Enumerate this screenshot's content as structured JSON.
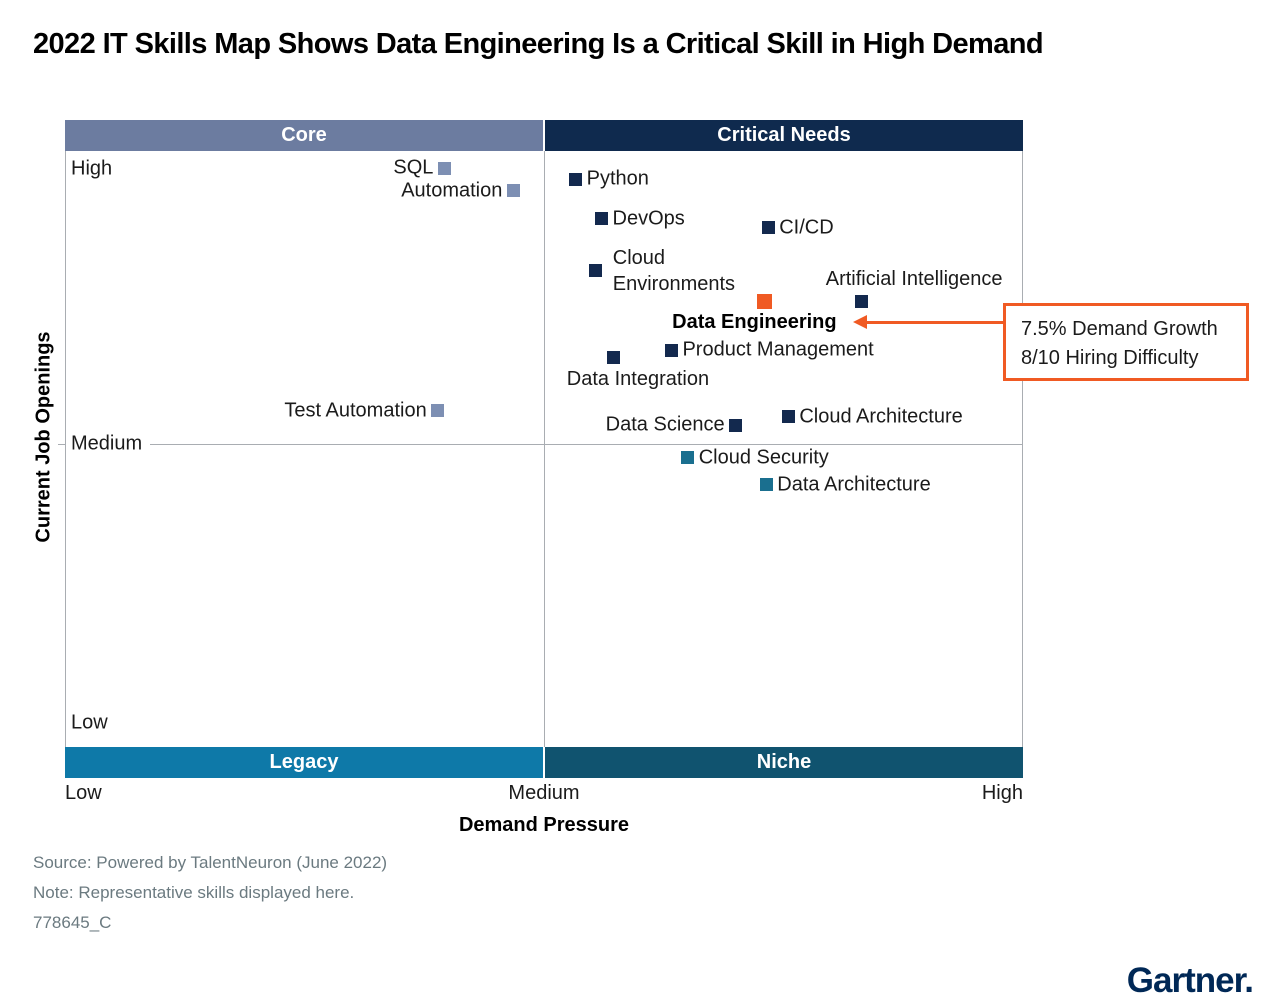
{
  "title": "2022 IT Skills Map Shows Data Engineering Is a Critical Skill in High Demand",
  "footer": {
    "source": "Source: Powered by TalentNeuron (June 2022)",
    "note": "Note: Representative skills displayed here.",
    "doc_id": "778645_C",
    "brand": "Gartner."
  },
  "chart_data": {
    "type": "scatter",
    "title": "2022 IT Skills Map",
    "xlabel": "Demand Pressure",
    "ylabel": "Current Job Openings",
    "x_ticks": [
      "Low",
      "Medium",
      "High"
    ],
    "y_ticks": [
      "High",
      "Medium",
      "Low"
    ],
    "xlim": [
      0,
      100
    ],
    "ylim": [
      0,
      100
    ],
    "grid": "single horizontal gridline at Medium; vertical divider at Medium",
    "legend_position": "none",
    "quadrants": [
      {
        "id": "core",
        "label": "Core",
        "position": "top-left",
        "color": "#6c7ca0"
      },
      {
        "id": "critical",
        "label": "Critical Needs",
        "position": "top-right",
        "color": "#0f2a4e"
      },
      {
        "id": "legacy",
        "label": "Legacy",
        "position": "bottom-left",
        "color": "#0e79a8"
      },
      {
        "id": "niche",
        "label": "Niche",
        "position": "bottom-right",
        "color": "#10536f"
      }
    ],
    "series_colors": {
      "core": "#7d8fb3",
      "critical": "#13294e",
      "niche": "#1a6f8f",
      "highlight": "#f05a23"
    },
    "points": [
      {
        "label": "SQL",
        "x": 39.5,
        "y": 97.1,
        "series": "core",
        "label_pos": "left"
      },
      {
        "label": "Automation",
        "x": 46.7,
        "y": 93.3,
        "series": "core",
        "label_pos": "left"
      },
      {
        "label": "Test Automation",
        "x": 38.8,
        "y": 56.4,
        "series": "core",
        "label_pos": "left"
      },
      {
        "label": "Python",
        "x": 53.2,
        "y": 95.3,
        "series": "critical",
        "label_pos": "right"
      },
      {
        "label": "DevOps",
        "x": 55.9,
        "y": 88.6,
        "series": "critical",
        "label_pos": "right"
      },
      {
        "label": "CI/CD",
        "x": 73.3,
        "y": 87.1,
        "series": "critical",
        "label_pos": "right"
      },
      {
        "label": "Cloud Environments",
        "x": 55.3,
        "y": 79.9,
        "series": "critical",
        "label_pos": "right",
        "wrap": true,
        "dx": 6
      },
      {
        "label": "Data Engineering",
        "x": 72.9,
        "y": 74.8,
        "series": "highlight",
        "label_pos": "below",
        "bold": true,
        "dx": -10
      },
      {
        "label": "Artificial Intelligence",
        "x": 83.0,
        "y": 74.8,
        "series": "critical",
        "label_pos": "above",
        "dx": 53
      },
      {
        "label": "Product Management",
        "x": 63.2,
        "y": 66.6,
        "series": "critical",
        "label_pos": "right"
      },
      {
        "label": "Data Integration",
        "x": 57.2,
        "y": 65.3,
        "series": "critical",
        "label_pos": "below",
        "dx": 24
      },
      {
        "label": "Data Science",
        "x": 69.9,
        "y": 54.0,
        "series": "critical",
        "label_pos": "left"
      },
      {
        "label": "Cloud Architecture",
        "x": 75.4,
        "y": 55.4,
        "series": "critical",
        "label_pos": "right"
      },
      {
        "label": "Cloud Security",
        "x": 64.9,
        "y": 48.5,
        "series": "niche",
        "label_pos": "right"
      },
      {
        "label": "Data Architecture",
        "x": 73.1,
        "y": 44.0,
        "series": "niche",
        "label_pos": "right"
      }
    ],
    "annotation": {
      "lines": [
        "7.5% Demand Growth",
        "8/10 Hiring Difficulty"
      ],
      "target": "Data Engineering",
      "color": "#f05a23"
    }
  }
}
